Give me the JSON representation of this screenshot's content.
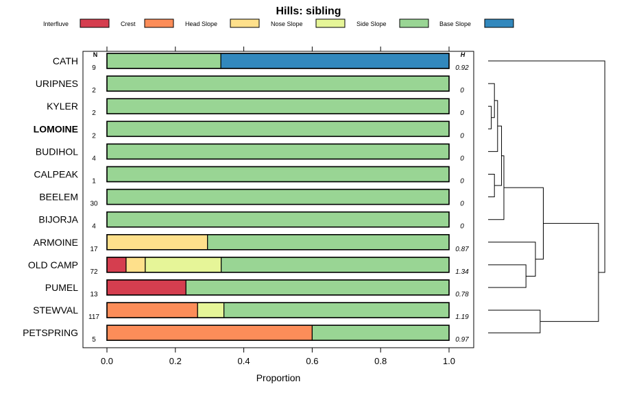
{
  "chart_data": {
    "type": "bar",
    "stacked": true,
    "orientation": "horizontal",
    "title": "Hills: sibling",
    "xlabel": "Proportion",
    "ylabel": "",
    "xlim": [
      0,
      1
    ],
    "xticks": [
      0,
      0.2,
      0.4,
      0.6,
      0.8,
      1
    ],
    "xtick_labels": [
      "0.0",
      "0.2",
      "0.4",
      "0.6",
      "0.8",
      "1.0"
    ],
    "legend": {
      "position": "top",
      "entries": [
        {
          "name": "Interfluve",
          "color": "#d53e4f"
        },
        {
          "name": "Crest",
          "color": "#fc8d59"
        },
        {
          "name": "Head Slope",
          "color": "#fee08b"
        },
        {
          "name": "Nose Slope",
          "color": "#e6f598"
        },
        {
          "name": "Side Slope",
          "color": "#99d594"
        },
        {
          "name": "Base Slope",
          "color": "#3288bd"
        }
      ]
    },
    "n_header": "N",
    "h_header": "H",
    "highlight_category": "LOMOINE",
    "categories": [
      "CATH",
      "URIPNES",
      "KYLER",
      "LOMOINE",
      "BUDIHOL",
      "CALPEAK",
      "BEELEM",
      "BIJORJA",
      "ARMOINE",
      "OLD CAMP",
      "PUMEL",
      "STEWVAL",
      "PETSPRING"
    ],
    "n": [
      "9",
      "2",
      "2",
      "2",
      "4",
      "1",
      "30",
      "4",
      "17",
      "72",
      "13",
      "117",
      "5"
    ],
    "h": [
      "0.92",
      "0",
      "0",
      "0",
      "0",
      "0",
      "0",
      "0",
      "0.87",
      "1.34",
      "0.78",
      "1.19",
      "0.97"
    ],
    "series": [
      {
        "name": "Interfluve",
        "values": [
          0,
          0,
          0,
          0,
          0,
          0,
          0,
          0,
          0,
          0.056,
          0.231,
          0,
          0
        ]
      },
      {
        "name": "Crest",
        "values": [
          0,
          0,
          0,
          0,
          0,
          0,
          0,
          0,
          0,
          0,
          0,
          0.265,
          0.6
        ]
      },
      {
        "name": "Head Slope",
        "values": [
          0,
          0,
          0,
          0,
          0,
          0,
          0,
          0,
          0.294,
          0.056,
          0,
          0,
          0
        ]
      },
      {
        "name": "Nose Slope",
        "values": [
          0,
          0,
          0,
          0,
          0,
          0,
          0,
          0,
          0,
          0.222,
          0,
          0.077,
          0
        ]
      },
      {
        "name": "Side Slope",
        "values": [
          0.333,
          1,
          1,
          1,
          1,
          1,
          1,
          1,
          0.706,
          0.666,
          0.769,
          0.658,
          0.4
        ]
      },
      {
        "name": "Base Slope",
        "values": [
          0.667,
          0,
          0,
          0,
          0,
          0,
          0,
          0,
          0,
          0,
          0,
          0,
          0
        ]
      }
    ],
    "dendrogram": {
      "orientation": "right",
      "clusters": [
        {
          "name": "kyler-lomoine",
          "members": [
            "KYLER",
            "LOMOINE"
          ],
          "height": 0.2
        },
        {
          "name": "uripnes-group",
          "members": [
            "URIPNES",
            "kyler-lomoine"
          ],
          "height": 0.4
        },
        {
          "name": "budihol-group",
          "members": [
            "BUDIHOL",
            "uripnes-group"
          ],
          "height": 0.6
        },
        {
          "name": "calpeak-beelem",
          "members": [
            "CALPEAK",
            "BEELEM"
          ],
          "height": 0.4
        },
        {
          "name": "side-slope-group",
          "members": [
            "budihol-group",
            "calpeak-beelem"
          ],
          "height": 0.85
        },
        {
          "name": "bijorja-group",
          "members": [
            "side-slope-group",
            "BIJORJA"
          ],
          "height": 1.0
        },
        {
          "name": "oldcamp-pumel",
          "members": [
            "OLD CAMP",
            "PUMEL"
          ],
          "height": 2.4
        },
        {
          "name": "armoine-group",
          "members": [
            "ARMOINE",
            "oldcamp-pumel"
          ],
          "height": 3.0
        },
        {
          "name": "middle-group",
          "members": [
            "bijorja-group",
            "armoine-group"
          ],
          "height": 3.5
        },
        {
          "name": "stewval-petspring",
          "members": [
            "STEWVAL",
            "PETSPRING"
          ],
          "height": 3.3
        },
        {
          "name": "lower-group",
          "members": [
            "middle-group",
            "stewval-petspring"
          ],
          "height": 7.0
        },
        {
          "name": "root",
          "members": [
            "CATH",
            "lower-group"
          ],
          "height": 7.4
        }
      ]
    }
  }
}
